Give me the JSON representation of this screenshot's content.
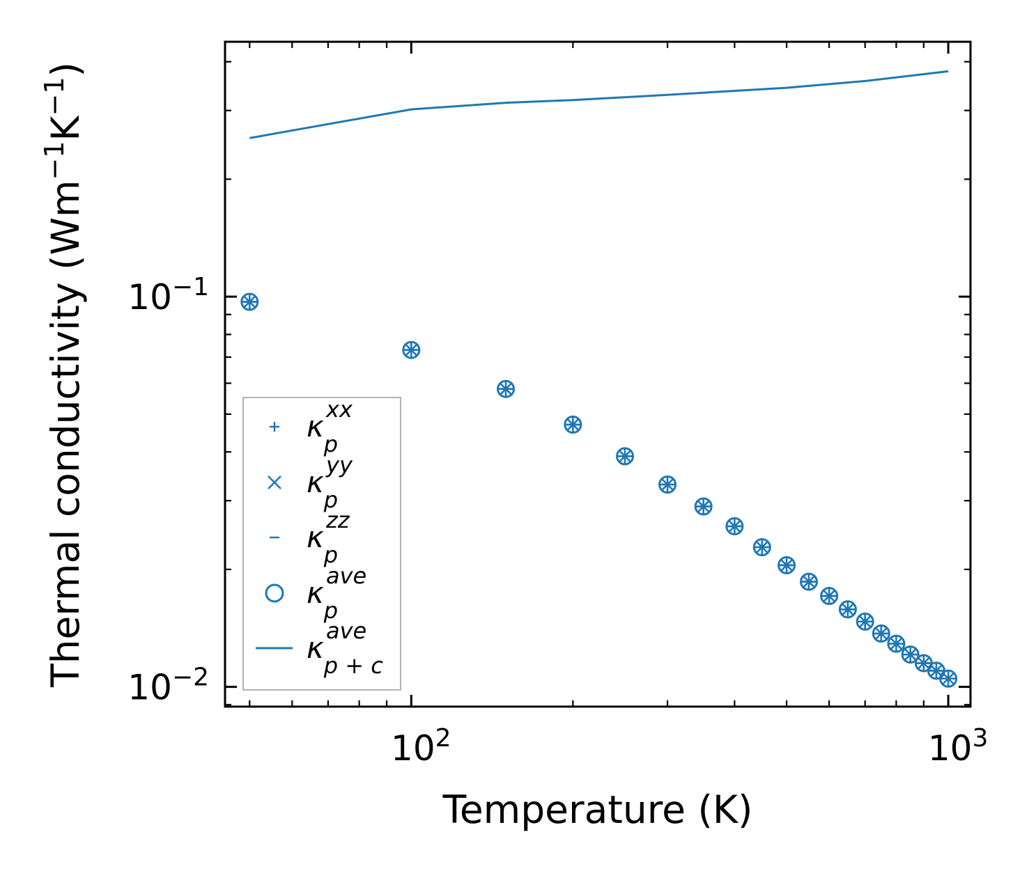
{
  "chart_data": {
    "type": "scatter",
    "title": "",
    "xlabel": "Temperature (K)",
    "ylabel": "Thermal conductivity (Wm",
    "ylabel_unit_parts": [
      "Wm",
      "−1",
      "K",
      "−1",
      ")"
    ],
    "xscale": "log",
    "yscale": "log",
    "xlim": [
      45,
      1100
    ],
    "ylim": [
      0.0089,
      0.45
    ],
    "x_ticks": [
      {
        "value": 100,
        "base": "10",
        "exp": "2"
      },
      {
        "value": 1000,
        "base": "10",
        "exp": "3"
      }
    ],
    "y_ticks": [
      {
        "value": 0.01,
        "base": "10",
        "exp": "−2"
      },
      {
        "value": 0.1,
        "base": "10",
        "exp": "−1"
      }
    ],
    "color": "#1f77b4",
    "x": [
      50,
      100,
      150,
      200,
      250,
      300,
      350,
      400,
      450,
      500,
      550,
      600,
      650,
      700,
      750,
      800,
      850,
      900,
      950,
      1000
    ],
    "series": [
      {
        "name": "kappa_p^xx",
        "label_main": "κ",
        "label_sub": "p",
        "label_sup": "xx",
        "marker": "plus",
        "values": [
          0.097,
          0.073,
          0.058,
          0.047,
          0.039,
          0.033,
          0.029,
          0.0258,
          0.0228,
          0.0205,
          0.0186,
          0.0171,
          0.0158,
          0.0147,
          0.0137,
          0.0129,
          0.0121,
          0.0115,
          0.011,
          0.0105
        ]
      },
      {
        "name": "kappa_p^yy",
        "label_main": "κ",
        "label_sub": "p",
        "label_sup": "yy",
        "marker": "x",
        "values": [
          0.097,
          0.073,
          0.058,
          0.047,
          0.039,
          0.033,
          0.029,
          0.0258,
          0.0228,
          0.0205,
          0.0186,
          0.0171,
          0.0158,
          0.0147,
          0.0137,
          0.0129,
          0.0121,
          0.0115,
          0.011,
          0.0105
        ]
      },
      {
        "name": "kappa_p^zz",
        "label_main": "κ",
        "label_sub": "p",
        "label_sup": "zz",
        "marker": "hline",
        "values": [
          0.097,
          0.073,
          0.058,
          0.047,
          0.039,
          0.033,
          0.029,
          0.0258,
          0.0228,
          0.0205,
          0.0186,
          0.0171,
          0.0158,
          0.0147,
          0.0137,
          0.0129,
          0.0121,
          0.0115,
          0.011,
          0.0105
        ]
      },
      {
        "name": "kappa_p^ave",
        "label_main": "κ",
        "label_sub": "p",
        "label_sup": "ave",
        "marker": "circle",
        "values": [
          0.097,
          0.073,
          0.058,
          0.047,
          0.039,
          0.033,
          0.029,
          0.0258,
          0.0228,
          0.0205,
          0.0186,
          0.0171,
          0.0158,
          0.0147,
          0.0137,
          0.0129,
          0.0121,
          0.0115,
          0.011,
          0.0105
        ]
      },
      {
        "name": "kappa_p+c^ave",
        "label_main": "κ",
        "label_sub": "p + c",
        "label_sup": "ave",
        "marker": "line",
        "x": [
          50,
          100,
          150,
          200,
          300,
          500,
          700,
          1000
        ],
        "values": [
          0.255,
          0.302,
          0.314,
          0.319,
          0.329,
          0.343,
          0.357,
          0.378
        ]
      }
    ],
    "legend_position": "lower-left",
    "grid": false
  }
}
